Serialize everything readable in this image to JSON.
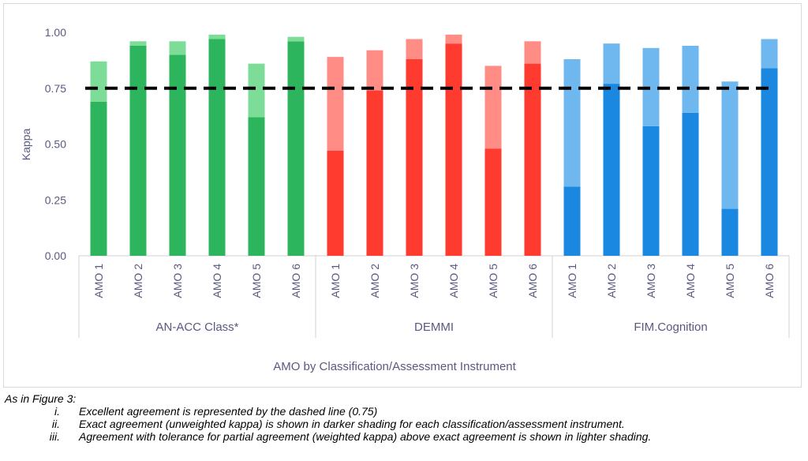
{
  "chart_data": {
    "type": "bar",
    "stacked": true,
    "ylabel": "Kappa",
    "xlabel": "AMO by Classification/Assessment Instrument",
    "ylim": [
      0,
      1
    ],
    "yticks": [
      "0.00",
      "0.25",
      "0.50",
      "0.75",
      "1.00"
    ],
    "reference_line": {
      "value": 0.75,
      "style": "dashed",
      "color": "#000000"
    },
    "groups": [
      {
        "name": "AN-ACC Class*",
        "dark_color": "#2db55d",
        "light_color": "#7ddc97",
        "categories": [
          "AMO 1",
          "AMO 2",
          "AMO 3",
          "AMO 4",
          "AMO 5",
          "AMO 6"
        ],
        "exact": [
          0.69,
          0.94,
          0.9,
          0.97,
          0.62,
          0.96
        ],
        "weighted": [
          0.87,
          0.96,
          0.96,
          0.99,
          0.86,
          0.98
        ]
      },
      {
        "name": "DEMMI",
        "dark_color": "#ff3b30",
        "light_color": "#ff8c85",
        "categories": [
          "AMO 1",
          "AMO 2",
          "AMO 3",
          "AMO 4",
          "AMO 5",
          "AMO 6"
        ],
        "exact": [
          0.47,
          0.74,
          0.88,
          0.95,
          0.48,
          0.86
        ],
        "weighted": [
          0.89,
          0.92,
          0.97,
          0.99,
          0.85,
          0.96
        ]
      },
      {
        "name": "FIM.Cognition",
        "dark_color": "#1a88e0",
        "light_color": "#6fb7ef",
        "categories": [
          "AMO 1",
          "AMO 2",
          "AMO 3",
          "AMO 4",
          "AMO 5",
          "AMO 6"
        ],
        "exact": [
          0.31,
          0.77,
          0.58,
          0.64,
          0.21,
          0.84
        ],
        "weighted": [
          0.88,
          0.95,
          0.93,
          0.94,
          0.78,
          0.97
        ]
      }
    ]
  },
  "notes": {
    "intro": "As in Figure 3:",
    "items": [
      {
        "num": "i.",
        "text": "Excellent agreement is represented by the dashed line (0.75)"
      },
      {
        "num": "ii.",
        "text": "Exact agreement (unweighted kappa) is shown in darker shading for each classification/assessment instrument."
      },
      {
        "num": "iii.",
        "text": "Agreement with tolerance for partial agreement (weighted kappa) above exact agreement is shown in lighter shading."
      }
    ]
  }
}
